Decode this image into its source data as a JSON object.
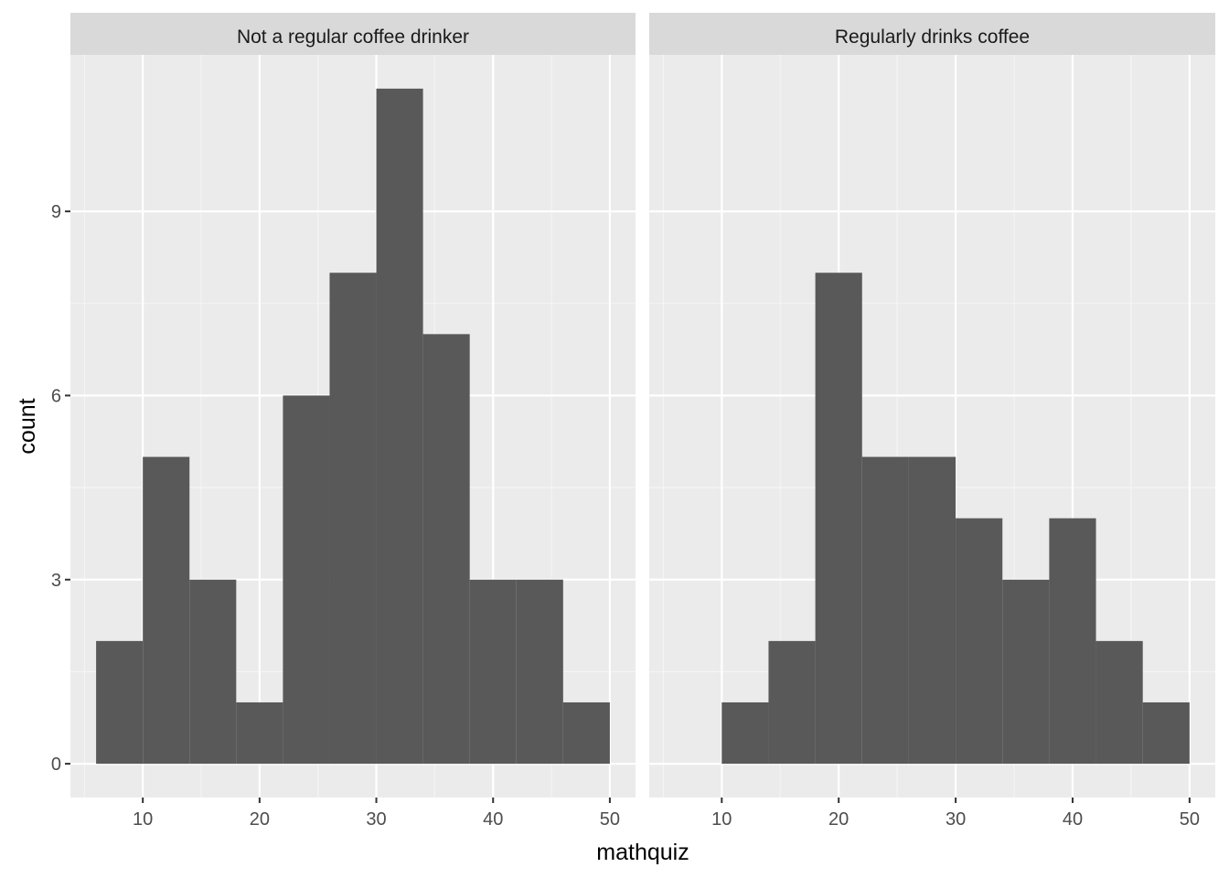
{
  "chart_data": {
    "type": "bar",
    "subtype": "faceted-histogram",
    "xlabel": "mathquiz",
    "ylabel": "count",
    "ylim": [
      -0.55,
      11.55
    ],
    "y_ticks": [
      0,
      3,
      6,
      9
    ],
    "grid": true,
    "legend": "none",
    "colors": {
      "panel_bg": "#ebebeb",
      "strip_bg": "#d9d9d9",
      "bar_fill": "#595959",
      "grid_major": "#ffffff",
      "grid_minor": "#f5f5f5",
      "tick_text": "#4d4d4d"
    },
    "facets": [
      {
        "label": "Not a regular coffee drinker",
        "xlim": [
          3.8,
          52.2
        ],
        "x_ticks": [
          10,
          20,
          30,
          40,
          50
        ],
        "bins": [
          {
            "x0": 6,
            "x1": 10,
            "count": 2
          },
          {
            "x0": 10,
            "x1": 14,
            "count": 5
          },
          {
            "x0": 14,
            "x1": 18,
            "count": 3
          },
          {
            "x0": 18,
            "x1": 22,
            "count": 1
          },
          {
            "x0": 22,
            "x1": 26,
            "count": 6
          },
          {
            "x0": 26,
            "x1": 30,
            "count": 8
          },
          {
            "x0": 30,
            "x1": 34,
            "count": 11
          },
          {
            "x0": 34,
            "x1": 38,
            "count": 7
          },
          {
            "x0": 38,
            "x1": 42,
            "count": 3
          },
          {
            "x0": 42,
            "x1": 46,
            "count": 3
          },
          {
            "x0": 46,
            "x1": 50,
            "count": 1
          }
        ]
      },
      {
        "label": "Regularly drinks coffee",
        "xlim": [
          3.8,
          52.2
        ],
        "x_ticks": [
          10,
          20,
          30,
          40,
          50
        ],
        "bins": [
          {
            "x0": 10,
            "x1": 14,
            "count": 1
          },
          {
            "x0": 14,
            "x1": 18,
            "count": 2
          },
          {
            "x0": 18,
            "x1": 22,
            "count": 8
          },
          {
            "x0": 22,
            "x1": 26,
            "count": 5
          },
          {
            "x0": 26,
            "x1": 30,
            "count": 5
          },
          {
            "x0": 30,
            "x1": 34,
            "count": 4
          },
          {
            "x0": 34,
            "x1": 38,
            "count": 3
          },
          {
            "x0": 38,
            "x1": 42,
            "count": 4
          },
          {
            "x0": 42,
            "x1": 46,
            "count": 2
          },
          {
            "x0": 46,
            "x1": 50,
            "count": 1
          }
        ]
      }
    ]
  }
}
